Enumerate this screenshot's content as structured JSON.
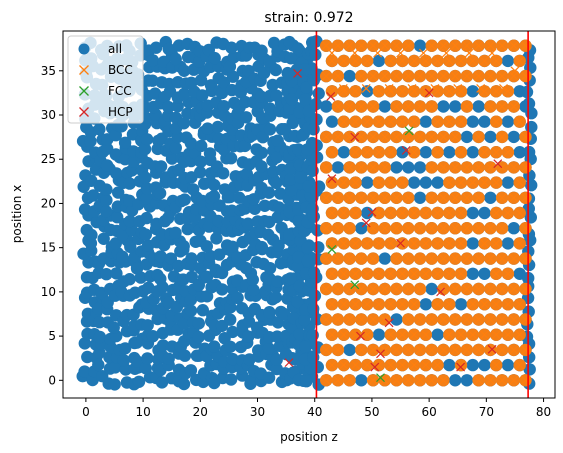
{
  "chart_data": {
    "type": "scatter",
    "title": "strain: 0.972",
    "xlabel": "position z",
    "ylabel": "position x",
    "xlim": [
      -4,
      82
    ],
    "ylim": [
      -2,
      39.5
    ],
    "xticks": [
      0,
      10,
      20,
      30,
      40,
      50,
      60,
      70,
      80
    ],
    "yticks": [
      0,
      5,
      10,
      15,
      20,
      25,
      30,
      35
    ],
    "xtick_labels": [
      "0",
      "10",
      "20",
      "30",
      "40",
      "50",
      "60",
      "70",
      "80"
    ],
    "ytick_labels": [
      "0",
      "5",
      "10",
      "15",
      "20",
      "25",
      "30",
      "35"
    ],
    "legend_position": "upper-left",
    "grid": false,
    "series": [
      {
        "name": "all",
        "marker": "circle",
        "color": "#1f77b4",
        "description_region": {
          "z_range": [
            0,
            78
          ],
          "x_range": [
            0,
            38
          ]
        },
        "sample_points": [
          [
            0,
            0
          ],
          [
            0,
            38
          ],
          [
            78,
            0
          ],
          [
            78,
            38
          ],
          [
            20,
            20
          ],
          [
            40,
            10
          ],
          [
            60,
            30
          ]
        ]
      },
      {
        "name": "BCC",
        "marker": "x",
        "color": "#ff7f0e",
        "lattice": {
          "z_start": 42,
          "z_end": 77.5,
          "z_step": 2.05,
          "x_start": 0,
          "x_end": 38,
          "x_step": 1.72
        },
        "points": [
          [
            43,
            37
          ],
          [
            47,
            37
          ],
          [
            51,
            37
          ],
          [
            55,
            37
          ],
          [
            59,
            37
          ],
          [
            63,
            37
          ],
          [
            67,
            37
          ],
          [
            71,
            37
          ],
          [
            75,
            35
          ],
          [
            45,
            33
          ],
          [
            49,
            33
          ],
          [
            53,
            33
          ],
          [
            57,
            33
          ],
          [
            61,
            33
          ],
          [
            65,
            33
          ],
          [
            69,
            33
          ],
          [
            73,
            33
          ]
        ]
      },
      {
        "name": "FCC",
        "marker": "x",
        "color": "#2ca02c",
        "points": [
          [
            56.5,
            28.2
          ],
          [
            43,
            14.8
          ],
          [
            51.5,
            0.3
          ],
          [
            47,
            10.8
          ]
        ]
      },
      {
        "name": "HCP",
        "marker": "x",
        "color": "#d62728",
        "points": [
          [
            37,
            34.7
          ],
          [
            42.8,
            32.1
          ],
          [
            47,
            27.5
          ],
          [
            43,
            22.8
          ],
          [
            49,
            17.8
          ],
          [
            50,
            19
          ],
          [
            55,
            15.5
          ],
          [
            60,
            32.5
          ],
          [
            62,
            10
          ],
          [
            35.5,
            2
          ],
          [
            50.5,
            1.5
          ],
          [
            51.5,
            3
          ],
          [
            65.5,
            1.5
          ],
          [
            53,
            6.5
          ],
          [
            56,
            26
          ],
          [
            72,
            24.5
          ],
          [
            71,
            3.5
          ],
          [
            48,
            5
          ]
        ]
      }
    ],
    "vertical_lines": [
      {
        "x": 40.3,
        "color": "#ff0000"
      },
      {
        "x": 77.3,
        "color": "#ff0000"
      }
    ]
  },
  "legend": {
    "items": [
      {
        "label": "all",
        "marker": "circle",
        "color": "#1f77b4"
      },
      {
        "label": "BCC",
        "marker": "x",
        "color": "#ff7f0e"
      },
      {
        "label": "FCC",
        "marker": "x",
        "color": "#2ca02c"
      },
      {
        "label": "HCP",
        "marker": "x",
        "color": "#d62728"
      }
    ]
  }
}
